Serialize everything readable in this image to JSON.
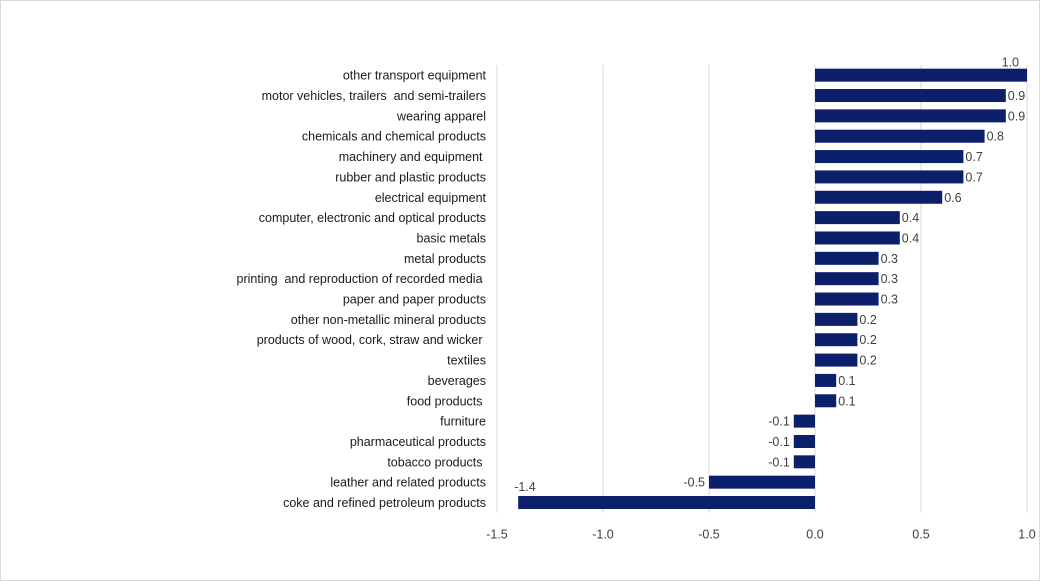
{
  "chart_data": {
    "type": "bar",
    "orientation": "horizontal",
    "title": "",
    "xlabel": "",
    "ylabel": "",
    "categories": [
      "other transport equipment",
      "motor vehicles, trailers  and semi-trailers",
      "wearing apparel",
      "chemicals and chemical products",
      "machinery and equipment ",
      "rubber and plastic products",
      "electrical equipment",
      "computer, electronic and optical products",
      "basic metals",
      "metal products",
      "printing  and reproduction of recorded media ",
      "paper and paper products",
      "other non-metallic mineral products",
      "products of wood, cork, straw and wicker ",
      "textiles",
      "beverages",
      "food products ",
      "furniture",
      "pharmaceutical products",
      "tobacco products ",
      "leather and related products",
      "coke and refined petroleum products"
    ],
    "values": [
      1.0,
      0.9,
      0.9,
      0.8,
      0.7,
      0.7,
      0.6,
      0.4,
      0.4,
      0.3,
      0.3,
      0.3,
      0.2,
      0.2,
      0.2,
      0.1,
      0.1,
      -0.1,
      -0.1,
      -0.1,
      -0.5,
      -1.4
    ],
    "value_labels": [
      "1.0",
      "0.9",
      "0.9",
      "0.8",
      "0.7",
      "0.7",
      "0.6",
      "0.4",
      "0.4",
      "0.3",
      "0.3",
      "0.3",
      "0.2",
      "0.2",
      "0.2",
      "0.1",
      "0.1",
      "-0.1",
      "-0.1",
      "-0.1",
      "-0.5",
      "-1.4"
    ],
    "xlim": [
      -1.5,
      1.0
    ],
    "xticks": [
      -1.5,
      -1.0,
      -0.5,
      0.0,
      0.5,
      1.0
    ],
    "xtick_labels": [
      "-1.5",
      "-1.0",
      "-0.5",
      "0.0",
      "0.5",
      "1.0"
    ],
    "grid": "vertical",
    "bar_color": "#0b1f6b",
    "grid_color": "#d9d9d9"
  }
}
